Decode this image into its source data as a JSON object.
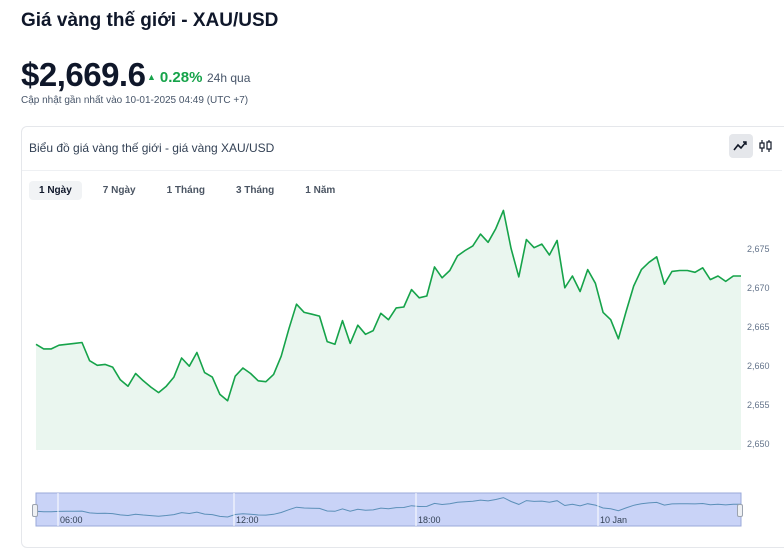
{
  "header": {
    "title": "Giá vàng thế giới - XAU/USD",
    "price": "$2,669.6",
    "change": "0.28%",
    "period": "24h qua",
    "updated": "Cập nhật gần nhất vào 10-01-2025 04:49 (UTC +7)"
  },
  "card": {
    "title": "Biểu đồ giá vàng thế giới - giá vàng XAU/USD",
    "chart_type_options": [
      "line-chart-icon",
      "candlestick-icon"
    ],
    "selected_chart_type": "line-chart-icon"
  },
  "tabs": [
    {
      "label": "1 Ngày",
      "active": true
    },
    {
      "label": "7 Ngày",
      "active": false
    },
    {
      "label": "1 Tháng",
      "active": false
    },
    {
      "label": "3 Tháng",
      "active": false
    },
    {
      "label": "1 Năm",
      "active": false
    }
  ],
  "colors": {
    "line": "#16a34a",
    "area": "#eaf6ef",
    "navigator_fill": "#c9d3f7",
    "navigator_line": "#5b8fb8",
    "positive": "#16a34a"
  },
  "chart_data": {
    "type": "area",
    "y_ticks": [
      "2,650",
      "2,655",
      "2,660",
      "2,665",
      "2,670",
      "2,675"
    ],
    "ylim": [
      2650,
      2677
    ],
    "y": [
      2661.6,
      2661.1,
      2661.1,
      2661.5,
      2661.6,
      2661.7,
      2661.8,
      2659.8,
      2659.3,
      2659.4,
      2659.1,
      2657.7,
      2657.0,
      2658.4,
      2657.6,
      2656.9,
      2656.3,
      2657.0,
      2658.0,
      2660.1,
      2659.2,
      2660.7,
      2658.5,
      2658.0,
      2656.1,
      2655.4,
      2658.1,
      2659.0,
      2658.4,
      2657.6,
      2657.5,
      2658.3,
      2660.3,
      2663.3,
      2666.0,
      2665.1,
      2664.9,
      2664.7,
      2661.9,
      2661.6,
      2664.2,
      2661.7,
      2663.7,
      2662.7,
      2663.1,
      2665.0,
      2664.3,
      2665.6,
      2665.7,
      2667.6,
      2666.7,
      2666.9,
      2670.1,
      2668.9,
      2669.7,
      2671.3,
      2671.9,
      2672.4,
      2673.7,
      2672.8,
      2674.3,
      2676.3,
      2672.1,
      2669.0,
      2673.1,
      2672.2,
      2672.6,
      2671.4,
      2673.0,
      2667.8,
      2669.1,
      2667.4,
      2669.8,
      2668.3,
      2665.1,
      2664.3,
      2662.2,
      2665.2,
      2668.0,
      2669.8,
      2670.6,
      2671.2,
      2668.2,
      2669.6,
      2669.7,
      2669.7,
      2669.5,
      2670.0,
      2668.7,
      2669.1,
      2668.5,
      2669.1,
      2669.1
    ],
    "navigator_ticks": [
      "06:00",
      "12:00",
      "18:00",
      "10 Jan"
    ],
    "grid": false
  }
}
